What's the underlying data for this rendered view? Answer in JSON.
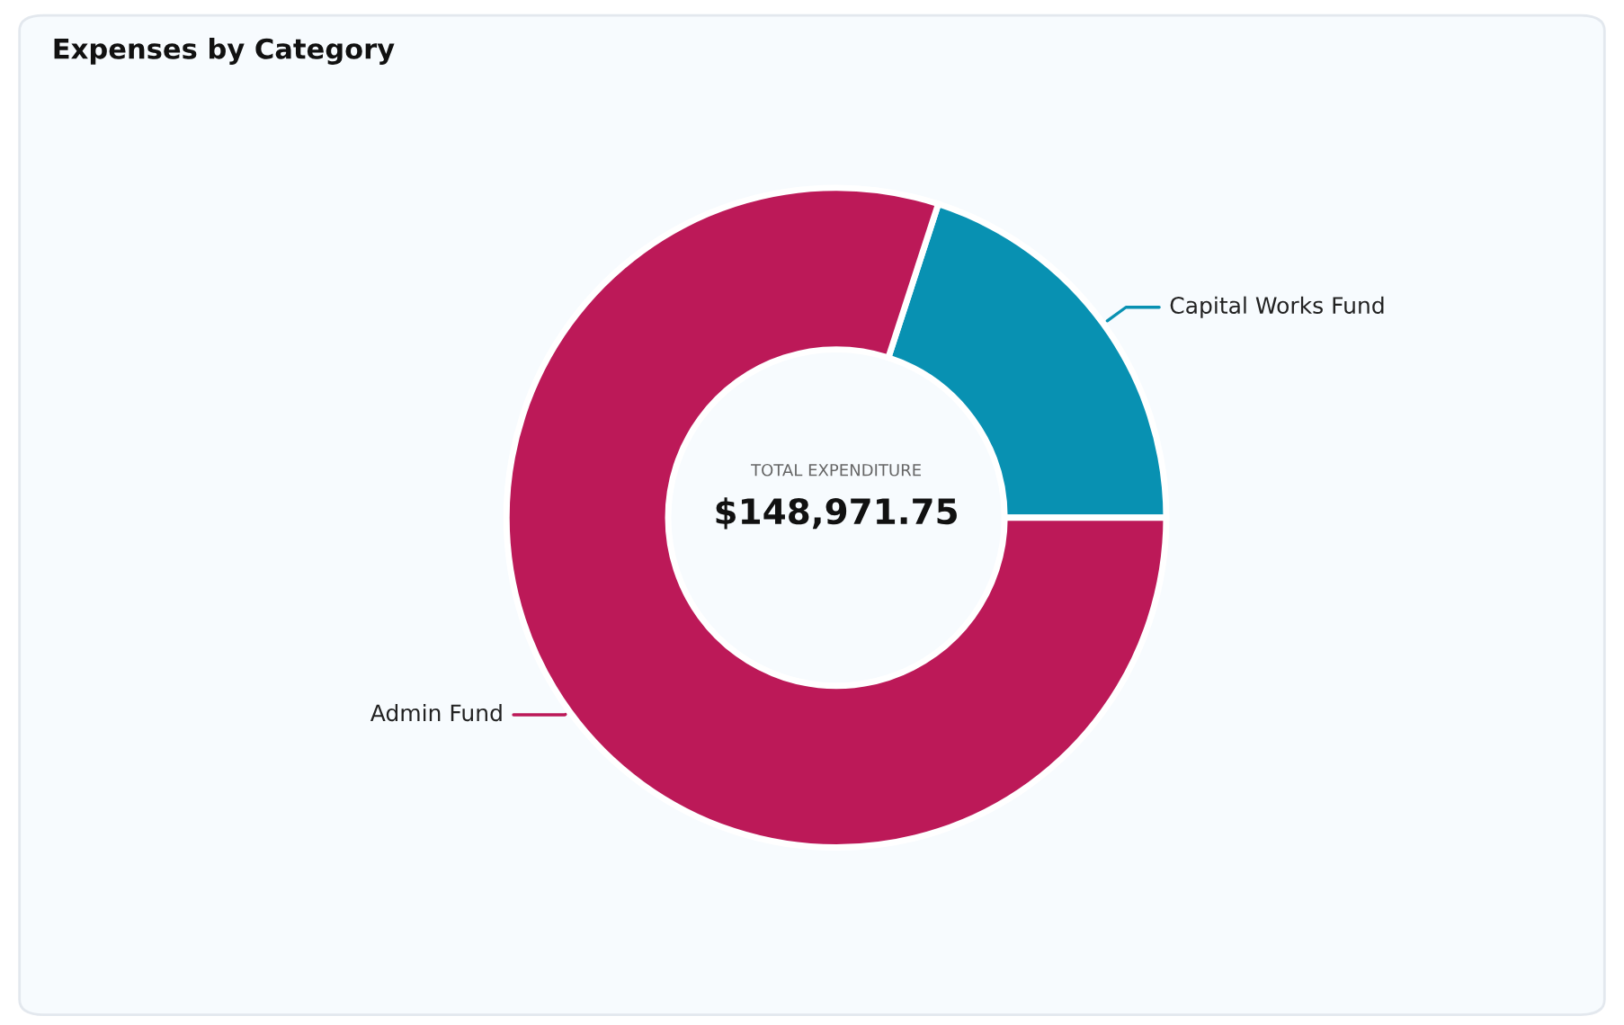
{
  "chart_data": {
    "type": "donut",
    "title": "Expenses by Category",
    "categories": [
      "Capital Works Fund",
      "Admin Fund"
    ],
    "values": [
      20,
      80
    ],
    "colors": [
      "#0891b2",
      "#bc1958"
    ],
    "annotations": [
      "TOTAL EXPENDITURE",
      "$148,971.75"
    ]
  }
}
